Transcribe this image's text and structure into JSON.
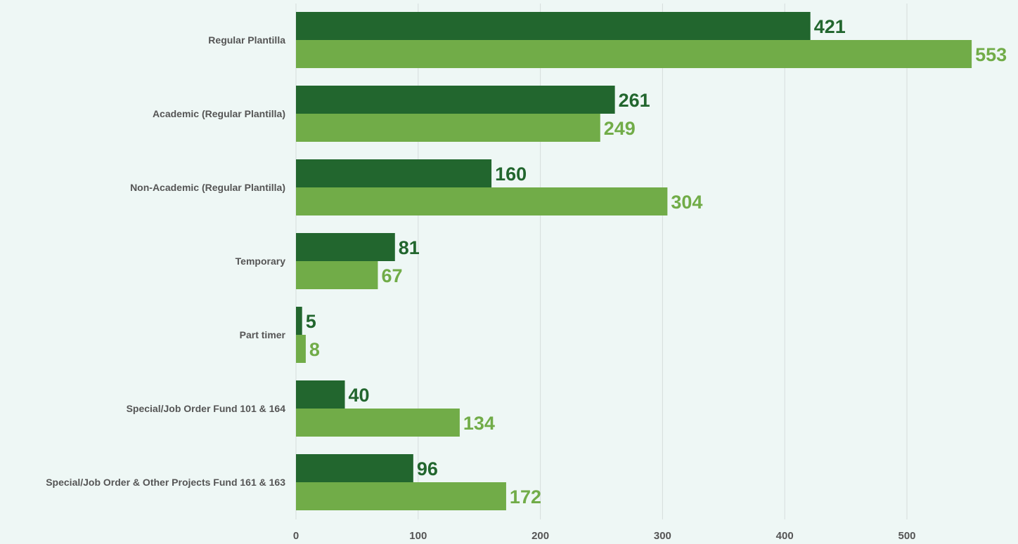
{
  "chart_data": {
    "type": "bar",
    "orientation": "horizontal",
    "categories": [
      "Regular Plantilla",
      "Academic (Regular Plantilla)",
      "Non-Academic (Regular Plantilla)",
      "Temporary",
      "Part timer",
      "Special/Job Order Fund 101 & 164",
      "Special/Job Order & Other Projects Fund 161 & 163"
    ],
    "series": [
      {
        "values": [
          421,
          261,
          160,
          81,
          5,
          40,
          96
        ],
        "color": "#22662e"
      },
      {
        "values": [
          553,
          249,
          304,
          67,
          8,
          134,
          172
        ],
        "color": "#71ac48"
      }
    ],
    "xlim": [
      0,
      580
    ],
    "xticks": [
      0,
      100,
      200,
      300,
      400,
      500
    ],
    "grid": true,
    "legend": "none",
    "data_labels": true,
    "title": "",
    "xlabel": "",
    "ylabel": ""
  }
}
